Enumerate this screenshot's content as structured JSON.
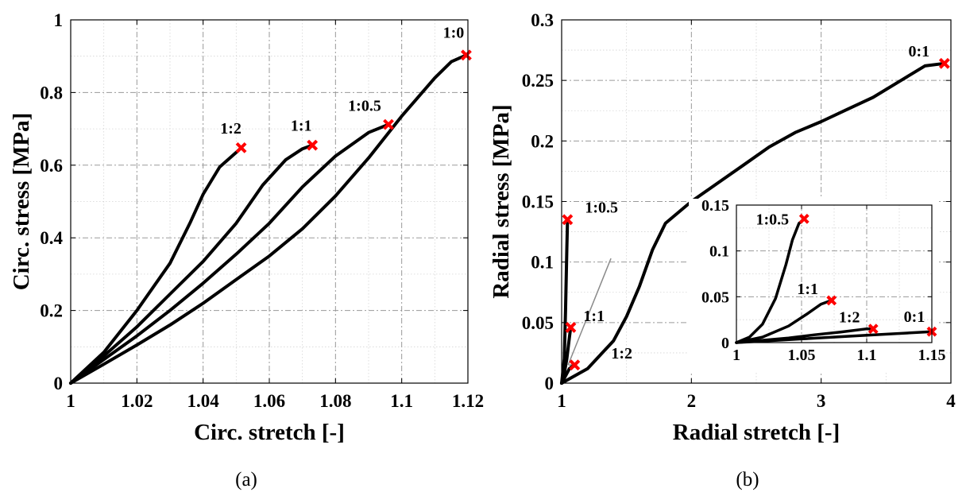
{
  "chart_data": [
    {
      "type": "line",
      "panel": "(a)",
      "xlabel": "Circ. stretch [-]",
      "ylabel": "Circ. stress [MPa]",
      "xlim": [
        1,
        1.12
      ],
      "ylim": [
        0,
        1
      ],
      "xticks": [
        1,
        1.02,
        1.04,
        1.06,
        1.08,
        1.1,
        1.12
      ],
      "xtick_labels": [
        "1",
        "1.02",
        "1.04",
        "1.06",
        "1.08",
        "1.1",
        "1.12"
      ],
      "yticks": [
        0,
        0.2,
        0.4,
        0.6,
        0.8,
        1
      ],
      "ytick_labels": [
        "0",
        "0.2",
        "0.4",
        "0.6",
        "0.8",
        "1"
      ],
      "grid": true,
      "marker_color": "#ff0000",
      "series": [
        {
          "label": "1:2",
          "points": [
            [
              1,
              0
            ],
            [
              1.01,
              0.085
            ],
            [
              1.02,
              0.2
            ],
            [
              1.03,
              0.33
            ],
            [
              1.036,
              0.44
            ],
            [
              1.04,
              0.52
            ],
            [
              1.045,
              0.595
            ],
            [
              1.05,
              0.635
            ],
            [
              1.0515,
              0.648
            ]
          ]
        },
        {
          "label": "1:1",
          "points": [
            [
              1,
              0
            ],
            [
              1.01,
              0.075
            ],
            [
              1.02,
              0.155
            ],
            [
              1.03,
              0.245
            ],
            [
              1.04,
              0.335
            ],
            [
              1.05,
              0.44
            ],
            [
              1.058,
              0.545
            ],
            [
              1.065,
              0.615
            ],
            [
              1.07,
              0.645
            ],
            [
              1.073,
              0.655
            ]
          ]
        },
        {
          "label": "1:0.5",
          "points": [
            [
              1,
              0
            ],
            [
              1.01,
              0.065
            ],
            [
              1.02,
              0.13
            ],
            [
              1.03,
              0.2
            ],
            [
              1.04,
              0.275
            ],
            [
              1.05,
              0.355
            ],
            [
              1.06,
              0.44
            ],
            [
              1.07,
              0.54
            ],
            [
              1.08,
              0.625
            ],
            [
              1.09,
              0.69
            ],
            [
              1.096,
              0.712
            ]
          ]
        },
        {
          "label": "1:0",
          "points": [
            [
              1,
              0
            ],
            [
              1.01,
              0.052
            ],
            [
              1.02,
              0.105
            ],
            [
              1.03,
              0.16
            ],
            [
              1.04,
              0.22
            ],
            [
              1.05,
              0.285
            ],
            [
              1.06,
              0.35
            ],
            [
              1.07,
              0.425
            ],
            [
              1.08,
              0.515
            ],
            [
              1.09,
              0.62
            ],
            [
              1.1,
              0.735
            ],
            [
              1.11,
              0.84
            ],
            [
              1.115,
              0.885
            ],
            [
              1.1195,
              0.903
            ]
          ]
        }
      ]
    },
    {
      "type": "line",
      "panel": "(b)",
      "xlabel": "Radial stretch [-]",
      "ylabel": "Radial stress [MPa]",
      "xlim": [
        1,
        4
      ],
      "ylim": [
        0,
        0.3
      ],
      "xticks": [
        1,
        2,
        3,
        4
      ],
      "xtick_labels": [
        "1",
        "2",
        "3",
        "4"
      ],
      "yticks": [
        0,
        0.05,
        0.1,
        0.15,
        0.2,
        0.25,
        0.3
      ],
      "ytick_labels": [
        "0",
        "0.05",
        "0.1",
        "0.15",
        "0.2",
        "0.25",
        "0.3"
      ],
      "grid": true,
      "marker_color": "#ff0000",
      "series": [
        {
          "label": "1:0.5",
          "points": [
            [
              1,
              0
            ],
            [
              1.02,
              0.02
            ],
            [
              1.03,
              0.06
            ],
            [
              1.04,
              0.11
            ],
            [
              1.045,
              0.135
            ]
          ]
        },
        {
          "label": "1:1",
          "points": [
            [
              1,
              0
            ],
            [
              1.02,
              0.008
            ],
            [
              1.04,
              0.02
            ],
            [
              1.06,
              0.038
            ],
            [
              1.07,
              0.046
            ]
          ]
        },
        {
          "label": "1:2",
          "points": [
            [
              1,
              0
            ],
            [
              1.03,
              0.006
            ],
            [
              1.06,
              0.012
            ],
            [
              1.1,
              0.015
            ]
          ]
        },
        {
          "label": "0:1",
          "points": [
            [
              1,
              0
            ],
            [
              1.2,
              0.012
            ],
            [
              1.4,
              0.035
            ],
            [
              1.5,
              0.055
            ],
            [
              1.6,
              0.08
            ],
            [
              1.7,
              0.11
            ],
            [
              1.8,
              0.132
            ],
            [
              2.0,
              0.15
            ],
            [
              2.2,
              0.165
            ],
            [
              2.4,
              0.18
            ],
            [
              2.6,
              0.195
            ],
            [
              2.8,
              0.207
            ],
            [
              3.0,
              0.216
            ],
            [
              3.2,
              0.226
            ],
            [
              3.4,
              0.236
            ],
            [
              3.6,
              0.249
            ],
            [
              3.8,
              0.262
            ],
            [
              3.95,
              0.264
            ]
          ]
        }
      ],
      "arrow": {
        "label": "1:2",
        "from": [
          1.38,
          0.103
        ],
        "to": [
          1.05,
          0.015
        ]
      },
      "inset": {
        "xlim": [
          1,
          1.15
        ],
        "ylim": [
          0,
          0.15
        ],
        "xticks": [
          1,
          1.05,
          1.1,
          1.15
        ],
        "xtick_labels": [
          "1",
          "1.05",
          "1.1",
          "1.15"
        ],
        "yticks": [
          0,
          0.05,
          0.1,
          0.15
        ],
        "ytick_labels": [
          "0",
          "0.05",
          "0.1",
          "0.15"
        ],
        "series": [
          {
            "label": "1:0.5",
            "points": [
              [
                1,
                0
              ],
              [
                1.01,
                0.006
              ],
              [
                1.02,
                0.02
              ],
              [
                1.03,
                0.048
              ],
              [
                1.038,
                0.085
              ],
              [
                1.043,
                0.112
              ],
              [
                1.048,
                0.13
              ],
              [
                1.052,
                0.135
              ]
            ]
          },
          {
            "label": "1:1",
            "points": [
              [
                1,
                0
              ],
              [
                1.02,
                0.006
              ],
              [
                1.04,
                0.018
              ],
              [
                1.055,
                0.032
              ],
              [
                1.065,
                0.042
              ],
              [
                1.073,
                0.046
              ]
            ]
          },
          {
            "label": "1:2",
            "points": [
              [
                1,
                0
              ],
              [
                1.02,
                0.0025
              ],
              [
                1.04,
                0.005
              ],
              [
                1.06,
                0.0085
              ],
              [
                1.08,
                0.0115
              ],
              [
                1.1,
                0.015
              ],
              [
                1.105,
                0.015
              ]
            ]
          },
          {
            "label": "0:1",
            "points": [
              [
                1,
                0
              ],
              [
                1.05,
                0.004
              ],
              [
                1.1,
                0.008
              ],
              [
                1.15,
                0.012
              ]
            ]
          }
        ]
      }
    }
  ],
  "captions": {
    "a": "(a)",
    "b": "(b)"
  }
}
